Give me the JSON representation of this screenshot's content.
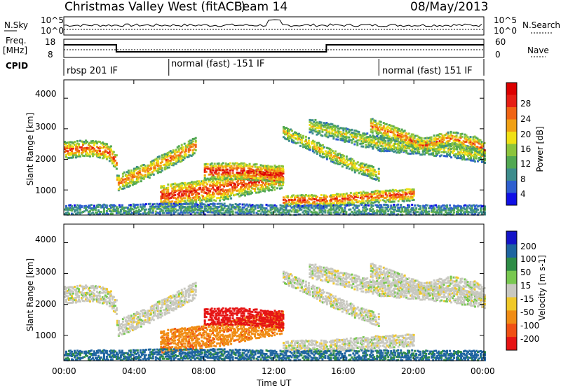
{
  "header": {
    "site_title": "Christmas Valley West (fitACF)",
    "beam": "Beam 14",
    "date": "08/May/2013"
  },
  "top_panels": {
    "nsky_label": "N.Sky",
    "nsearch_label": "N.Search",
    "noise_ticks": [
      "10^5",
      "10^0"
    ],
    "noise_ticks_right": [
      "10^5",
      "10^0"
    ],
    "freq_label_1": "Freq.",
    "freq_label_2": "[MHz]",
    "freq_ticks": [
      "18",
      "8"
    ],
    "nave_ticks": [
      "60",
      "0"
    ],
    "nave_label": "Nave",
    "cpid_label": "CPID",
    "cpid_segments": [
      {
        "label": "rbsp 201 IF",
        "start_hour": 0
      },
      {
        "label": "normal (fast) -151 IF",
        "start_hour": 6
      },
      {
        "label": "normal (fast) 151 IF",
        "start_hour": 18
      }
    ]
  },
  "chart_data": [
    {
      "type": "heatmap",
      "quantity": "Power",
      "ylabel": "Slant Range [km]",
      "xlabel": "Time UT",
      "x_range_hours": [
        0,
        24
      ],
      "x_ticks": [
        "00:00",
        "04:00",
        "08:00",
        "12:00",
        "16:00",
        "20:00",
        "00:00"
      ],
      "y_range_km": [
        180,
        4600
      ],
      "y_ticks": [
        1000,
        2000,
        3000,
        4000
      ],
      "colorbar_label": "Power [dB]",
      "colorbar_ticks": [
        "28",
        "24",
        "20",
        "16",
        "12",
        "8",
        "4"
      ],
      "colorbar_range": [
        0,
        30
      ],
      "colors": [
        "#1010e6",
        "#2e5fcf",
        "#3d8c8c",
        "#52a852",
        "#8cc43c",
        "#f0e014",
        "#f0a014",
        "#f06414",
        "#e61e14",
        "#dc0000"
      ]
    },
    {
      "type": "heatmap",
      "quantity": "Velocity",
      "ylabel": "Slant Range [km]",
      "xlabel": "Time UT",
      "x_range_hours": [
        0,
        24
      ],
      "x_ticks": [
        "00:00",
        "04:00",
        "08:00",
        "12:00",
        "16:00",
        "20:00",
        "00:00"
      ],
      "y_range_km": [
        180,
        4600
      ],
      "y_ticks": [
        1000,
        2000,
        3000,
        4000
      ],
      "colorbar_label": "Velocity [m s-1]",
      "colorbar_ticks": [
        "200",
        "100",
        "50",
        "15",
        "-15",
        "-50",
        "-100",
        "-200"
      ],
      "colorbar_range": [
        -250,
        250
      ],
      "colors": [
        "#1414c8",
        "#1e64a0",
        "#2e8c46",
        "#78c850",
        "#c8c8c0",
        "#f0c828",
        "#f08c14",
        "#f05014",
        "#e61414"
      ],
      "ground_scatter_color": "#c0c0b8"
    }
  ],
  "echo_bands": [
    {
      "name": "band-a",
      "t": [
        0,
        1.5,
        2.5,
        3
      ],
      "r": [
        2300,
        2350,
        2250,
        1900
      ],
      "w": 250,
      "p": 24,
      "v": 0
    },
    {
      "name": "band-b",
      "t": [
        3,
        5,
        7.5
      ],
      "r": [
        1200,
        1700,
        2450
      ],
      "w": 250,
      "p": 22,
      "v": 0
    },
    {
      "name": "band-c",
      "t": [
        5.5,
        7,
        9,
        11,
        12.5
      ],
      "r": [
        800,
        900,
        1050,
        1300,
        1450
      ],
      "w": 380,
      "p": 25,
      "v": -60
    },
    {
      "name": "band-d",
      "t": [
        8,
        10,
        12.5
      ],
      "r": [
        1600,
        1600,
        1500
      ],
      "w": 250,
      "p": 27,
      "v": -180
    },
    {
      "name": "band-e",
      "t": [
        12.5,
        14,
        16,
        18,
        20
      ],
      "r": [
        650,
        650,
        700,
        800,
        850
      ],
      "w": 200,
      "p": 24,
      "v": 0
    },
    {
      "name": "band-f",
      "t": [
        12.5,
        14,
        15,
        16.5,
        18
      ],
      "r": [
        2900,
        2500,
        2200,
        1800,
        1500
      ],
      "w": 200,
      "p": 18,
      "v": 0
    },
    {
      "name": "band-g",
      "t": [
        14,
        16,
        18,
        20,
        22,
        24
      ],
      "r": [
        3100,
        2800,
        2500,
        2400,
        2300,
        2100
      ],
      "w": 220,
      "p": 16,
      "v": 0
    },
    {
      "name": "band-h",
      "t": [
        17.5,
        19,
        20.5,
        22,
        23.5,
        24
      ],
      "r": [
        3100,
        2800,
        2450,
        2700,
        2500,
        2300
      ],
      "w": 220,
      "p": 22,
      "v": 0
    },
    {
      "name": "band-i",
      "t": [
        0,
        3,
        6,
        9,
        12,
        15,
        18,
        21,
        24
      ],
      "r": [
        300,
        320,
        350,
        350,
        300,
        300,
        320,
        300,
        300
      ],
      "w": 180,
      "p": 10,
      "v": 60
    }
  ]
}
